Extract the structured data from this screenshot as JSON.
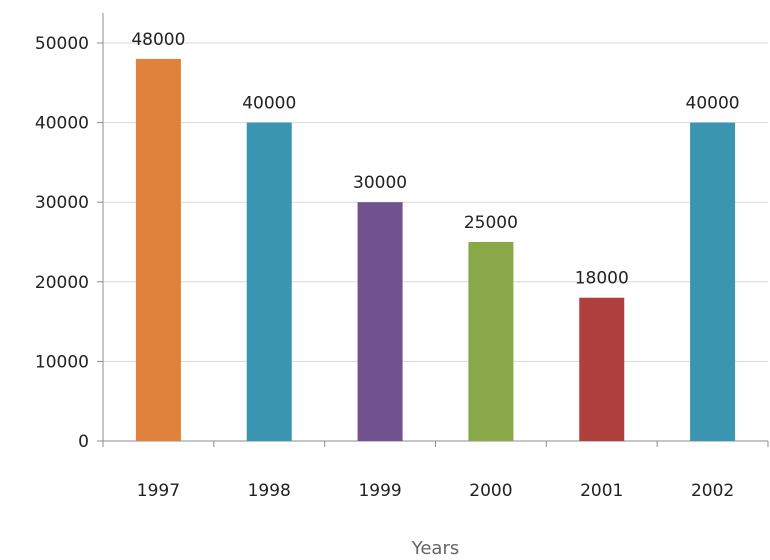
{
  "chart_data": {
    "type": "bar",
    "categories": [
      "1997",
      "1998",
      "1999",
      "2000",
      "2001",
      "2002"
    ],
    "values": [
      48000,
      40000,
      30000,
      25000,
      18000,
      40000
    ],
    "data_labels": [
      "48000",
      "40000",
      "30000",
      "25000",
      "18000",
      "40000"
    ],
    "bar_colors": [
      "#E0823C",
      "#3A96B0",
      "#6F528F",
      "#88A84A",
      "#B0403E",
      "#3A96B0"
    ],
    "title": "",
    "xlabel": "Years",
    "ylabel": "",
    "ylim": [
      0,
      50000
    ],
    "yticks": [
      0,
      10000,
      20000,
      30000,
      40000,
      50000
    ],
    "ytick_labels": [
      "0",
      "10000",
      "20000",
      "30000",
      "40000",
      "50000"
    ],
    "grid": true,
    "legend": false
  }
}
